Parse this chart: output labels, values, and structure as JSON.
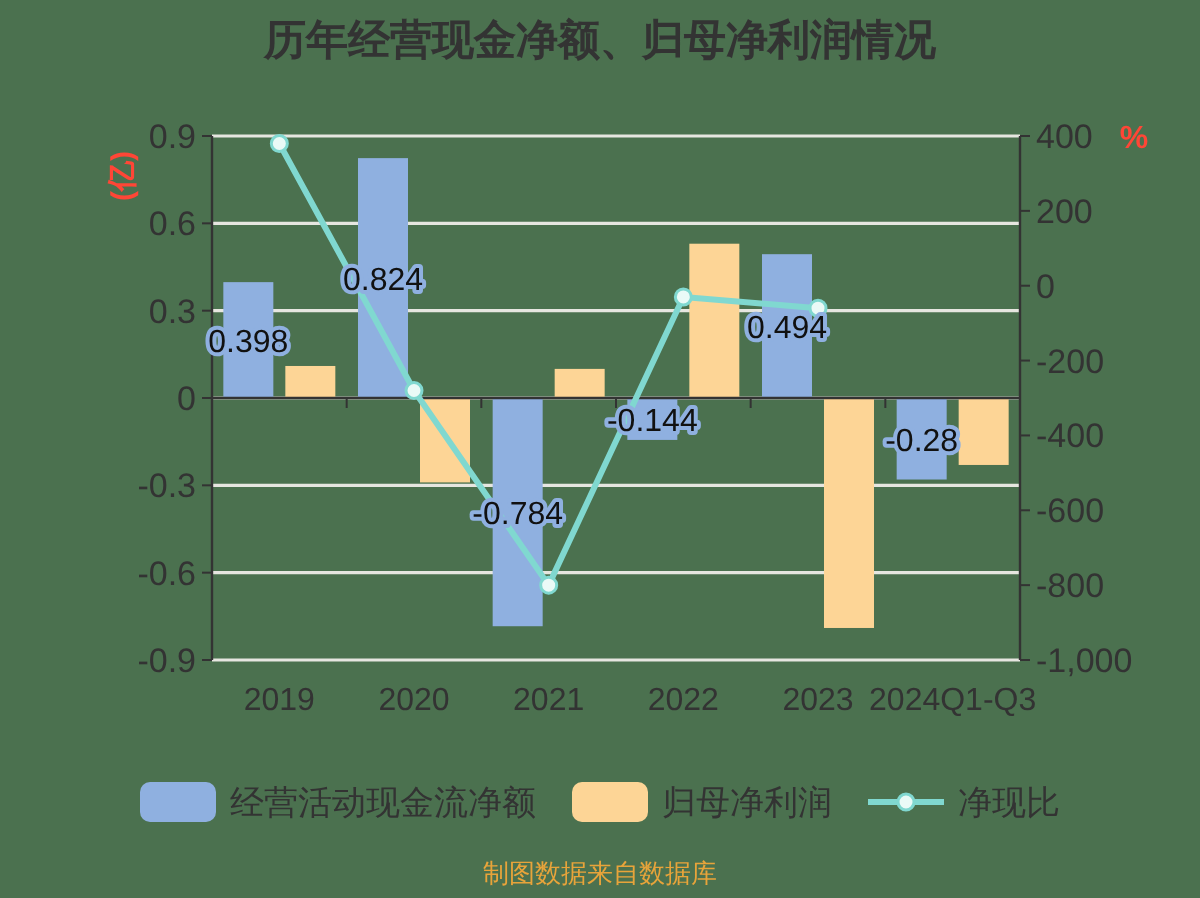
{
  "chart_data": {
    "type": "bar",
    "title": "历年经营现金净额、归母净利润情况",
    "ylabel": "(亿)",
    "y2label": "%",
    "categories": [
      "2019",
      "2020",
      "2021",
      "2022",
      "2023",
      "2024Q1-Q3"
    ],
    "series": [
      {
        "name": "经营活动现金流净额",
        "color": "#8fb0e0",
        "values": [
          0.398,
          0.824,
          -0.784,
          -0.144,
          0.494,
          -0.28
        ],
        "value_labels": [
          "0.398",
          "0.824",
          "-0.784",
          "-0.144",
          "0.494",
          "-0.28"
        ]
      },
      {
        "name": "归母净利润",
        "color": "#fdd596",
        "values": [
          0.11,
          -0.29,
          0.1,
          0.53,
          -0.79,
          -0.23
        ]
      },
      {
        "name": "净现比",
        "type": "line",
        "axis": "y2",
        "color": "#80d8d0",
        "marker": "circle",
        "values": [
          380,
          -280,
          -800,
          -30,
          -60,
          null
        ]
      }
    ],
    "ylim": [
      -0.9,
      0.9
    ],
    "yticks": [
      -0.9,
      -0.6,
      -0.3,
      0,
      0.3,
      0.6,
      0.9
    ],
    "y2lim": [
      -1000,
      400
    ],
    "y2ticks": [
      {
        "value": -1000,
        "label": "-1,000"
      },
      -800,
      -600,
      -400,
      -200,
      0,
      200,
      400
    ],
    "grid": "y",
    "legend": "bottom",
    "annotations": [
      "制图数据来自数据库"
    ]
  }
}
